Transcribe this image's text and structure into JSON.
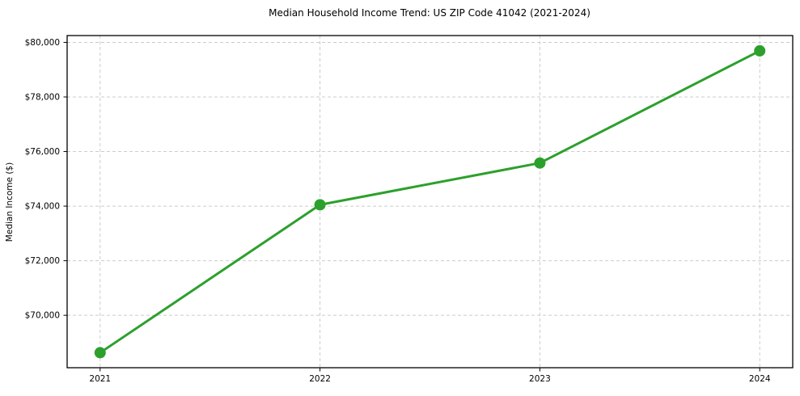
{
  "chart_data": {
    "type": "line",
    "title": "Median Household Income Trend: US ZIP Code 41042 (2021-2024)",
    "xlabel": "",
    "ylabel": "Median Income ($)",
    "categories": [
      "2021",
      "2022",
      "2023",
      "2024"
    ],
    "values": [
      68630,
      74050,
      75580,
      79690
    ],
    "yticks": [
      {
        "value": 70000,
        "label": "$70,000"
      },
      {
        "value": 72000,
        "label": "$72,000"
      },
      {
        "value": 74000,
        "label": "$74,000"
      },
      {
        "value": 76000,
        "label": "$76,000"
      },
      {
        "value": 78000,
        "label": "$78,000"
      },
      {
        "value": 80000,
        "label": "$80,000"
      }
    ],
    "ylim": [
      68080,
      80250
    ],
    "grid": true,
    "grid_style": "dashed",
    "legend_position": "none",
    "colors": {
      "line": "#2ca02c",
      "marker": "#2ca02c",
      "grid": "#cccccc",
      "axis": "#000000",
      "text": "#000000",
      "background": "#ffffff"
    }
  }
}
